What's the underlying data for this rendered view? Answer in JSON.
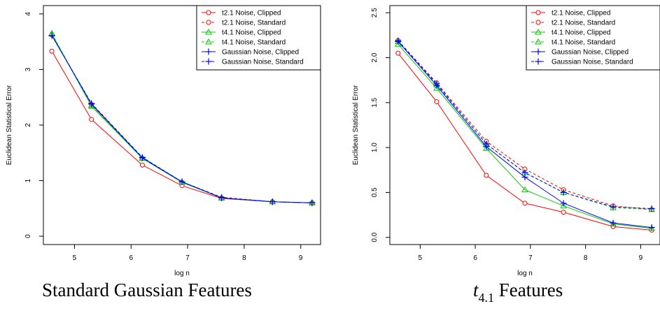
{
  "captions": {
    "left": "Standard Gaussian Features",
    "right_main": "t",
    "right_sub": "4.1",
    "right_suffix": " Features"
  },
  "chart_data": [
    {
      "type": "line",
      "xlabel": "log n",
      "ylabel": "Euclidean Statistical Error",
      "xlim": [
        4.45,
        9.35
      ],
      "ylim": [
        -0.15,
        4.15
      ],
      "xticks": [
        "5",
        "6",
        "7",
        "8",
        "9"
      ],
      "yticks": [
        "0",
        "1",
        "2",
        "3",
        "4"
      ],
      "legend_position": "top-right",
      "x": [
        4.6,
        5.3,
        6.2,
        6.9,
        7.6,
        8.5,
        9.2
      ],
      "series": [
        {
          "name": "t2.1 Noise, Clipped",
          "color": "#ff0000",
          "dash": "solid",
          "marker": "circle",
          "values": [
            3.33,
            2.1,
            1.28,
            0.91,
            0.68,
            0.62,
            0.6
          ]
        },
        {
          "name": "t2.1 Noise, Standard",
          "color": "#ff0000",
          "dash": "dashed",
          "marker": "circle",
          "values": [
            3.62,
            2.37,
            1.4,
            0.97,
            0.69,
            0.62,
            0.6
          ]
        },
        {
          "name": "t4.1 Noise, Clipped",
          "color": "#00cd00",
          "dash": "solid",
          "marker": "triangle",
          "values": [
            3.64,
            2.34,
            1.4,
            0.97,
            0.69,
            0.62,
            0.6
          ]
        },
        {
          "name": "t4.1 Noise, Standard",
          "color": "#00cd00",
          "dash": "dashed",
          "marker": "triangle",
          "values": [
            3.65,
            2.35,
            1.41,
            0.97,
            0.69,
            0.62,
            0.6
          ]
        },
        {
          "name": "Gaussian Noise, Clipped",
          "color": "#0000ff",
          "dash": "solid",
          "marker": "plus",
          "values": [
            3.61,
            2.38,
            1.41,
            0.98,
            0.69,
            0.62,
            0.6
          ]
        },
        {
          "name": "Gaussian Noise, Standard",
          "color": "#0000ff",
          "dash": "dashed",
          "marker": "plus",
          "values": [
            3.61,
            2.39,
            1.42,
            0.98,
            0.7,
            0.62,
            0.6
          ]
        }
      ]
    },
    {
      "type": "line",
      "xlabel": "log n",
      "ylabel": "Euclidean Statistical Error",
      "xlim": [
        4.45,
        9.35
      ],
      "ylim": [
        -0.08,
        2.58
      ],
      "xticks": [
        "5",
        "6",
        "7",
        "8",
        "9"
      ],
      "yticks": [
        "0.0",
        "0.5",
        "1.0",
        "1.5",
        "2.0",
        "2.5"
      ],
      "legend_position": "top-right",
      "x": [
        4.6,
        5.3,
        6.2,
        6.9,
        7.6,
        8.5,
        9.2
      ],
      "series": [
        {
          "name": "t2.1 Noise, Clipped",
          "color": "#ff0000",
          "dash": "solid",
          "marker": "circle",
          "values": [
            2.05,
            1.51,
            0.69,
            0.38,
            0.28,
            0.12,
            0.08
          ]
        },
        {
          "name": "t2.1 Noise, Standard",
          "color": "#ff0000",
          "dash": "dashed",
          "marker": "circle",
          "values": [
            2.19,
            1.72,
            1.07,
            0.76,
            0.53,
            0.35,
            0.31
          ]
        },
        {
          "name": "t4.1 Noise, Clipped",
          "color": "#00cd00",
          "dash": "solid",
          "marker": "triangle",
          "values": [
            2.15,
            1.66,
            0.99,
            0.53,
            0.35,
            0.15,
            0.1
          ]
        },
        {
          "name": "t4.1 Noise, Standard",
          "color": "#00cd00",
          "dash": "dashed",
          "marker": "triangle",
          "values": [
            2.18,
            1.7,
            1.04,
            0.72,
            0.5,
            0.33,
            0.31
          ]
        },
        {
          "name": "Gaussian Noise, Clipped",
          "color": "#0000ff",
          "dash": "solid",
          "marker": "plus",
          "values": [
            2.18,
            1.69,
            1.01,
            0.67,
            0.38,
            0.16,
            0.11
          ]
        },
        {
          "name": "Gaussian Noise, Standard",
          "color": "#0000ff",
          "dash": "dashed",
          "marker": "plus",
          "values": [
            2.19,
            1.71,
            1.04,
            0.72,
            0.5,
            0.34,
            0.32
          ]
        }
      ]
    }
  ]
}
